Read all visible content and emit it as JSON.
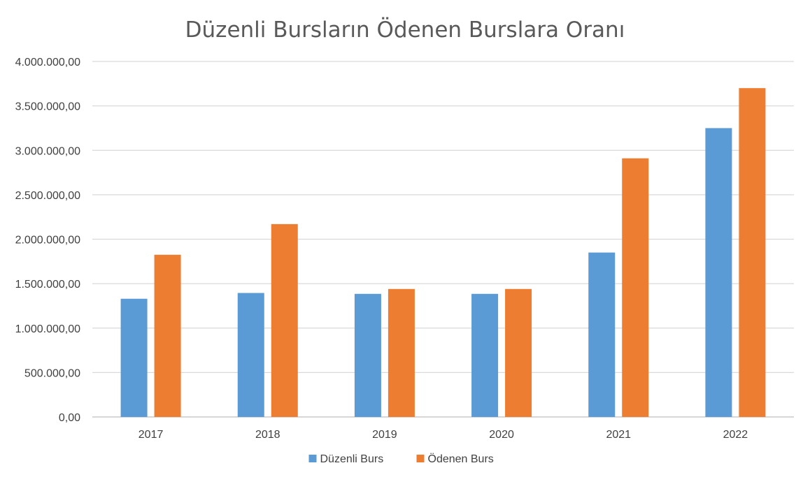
{
  "chart_data": {
    "type": "bar",
    "title": "Düzenli Bursların Ödenen Burslara Oranı",
    "xlabel": "",
    "ylabel": "",
    "categories": [
      "2017",
      "2018",
      "2019",
      "2020",
      "2021",
      "2022"
    ],
    "series": [
      {
        "name": "Düzenli Burs",
        "color": "#5B9BD5",
        "values": [
          1330000,
          1395000,
          1385000,
          1385000,
          1850000,
          3250000
        ]
      },
      {
        "name": "Ödenen Burs",
        "color": "#ED7D31",
        "values": [
          1825000,
          2170000,
          1440000,
          1440000,
          2910000,
          3700000
        ]
      }
    ],
    "ylim": [
      0,
      4000000
    ],
    "yticks": [
      {
        "value": 0,
        "label": "0,00"
      },
      {
        "value": 500000,
        "label": "500.000,00"
      },
      {
        "value": 1000000,
        "label": "1.000.000,00"
      },
      {
        "value": 1500000,
        "label": "1.500.000,00"
      },
      {
        "value": 2000000,
        "label": "2.000.000,00"
      },
      {
        "value": 2500000,
        "label": "2.500.000,00"
      },
      {
        "value": 3000000,
        "label": "3.000.000,00"
      },
      {
        "value": 3500000,
        "label": "3.500.000,00"
      },
      {
        "value": 4000000,
        "label": "4.000.000,00"
      }
    ],
    "grid": true,
    "legend_position": "bottom"
  }
}
